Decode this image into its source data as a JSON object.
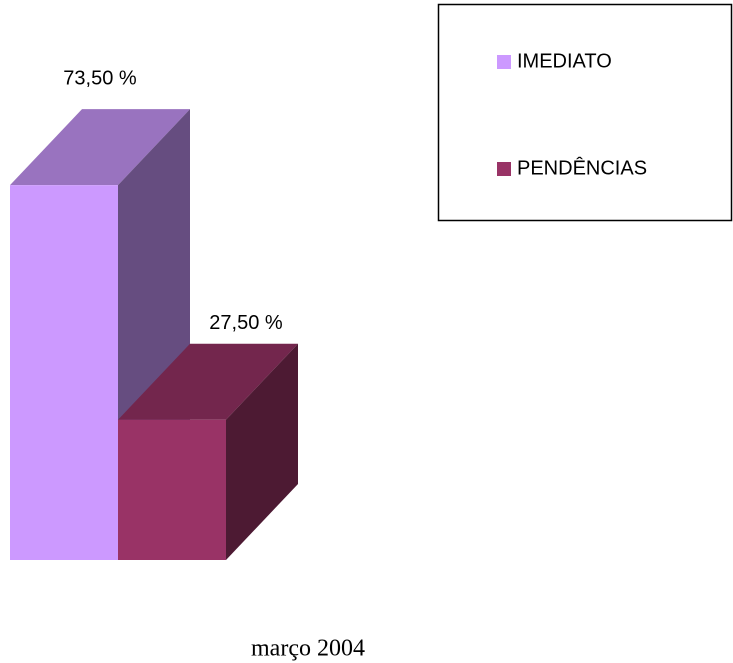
{
  "chart_data": {
    "type": "bar3d",
    "categories": [
      "março 2004"
    ],
    "series": [
      {
        "name": "IMEDIATO",
        "color": "#cc99ff",
        "values": [
          73.5
        ],
        "value_labels": [
          "73,50 %"
        ]
      },
      {
        "name": "PENDÊNCIAS",
        "color": "#993366",
        "values": [
          27.5
        ],
        "value_labels": [
          "27,50 %"
        ]
      }
    ]
  }
}
